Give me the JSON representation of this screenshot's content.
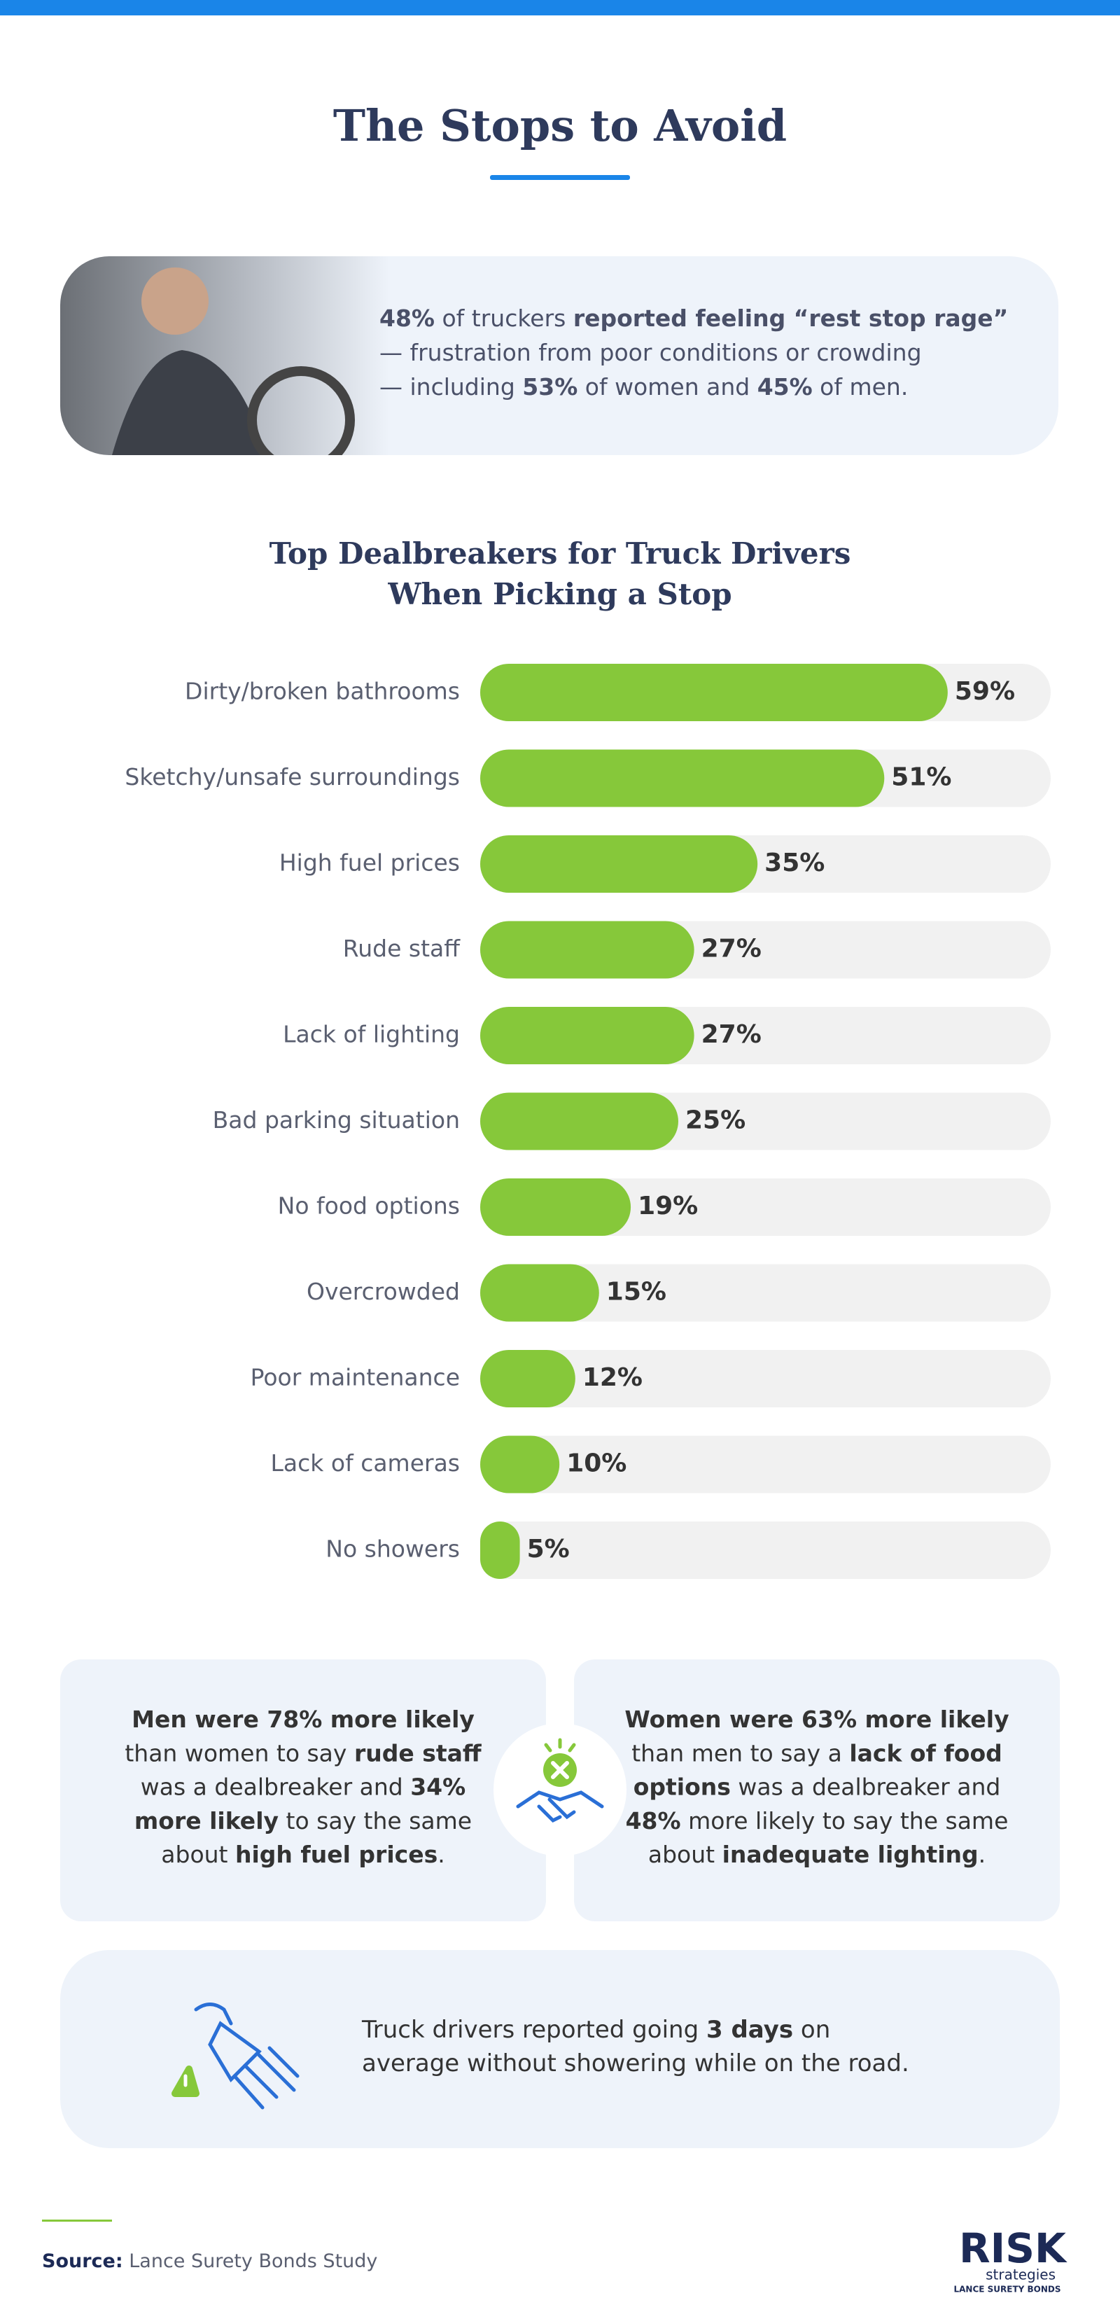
{
  "title": "The Stops to Avoid",
  "callout": {
    "lines": [
      [
        {
          "text": "48%",
          "bold": true
        },
        {
          "text": " of truckers ",
          "bold": false
        },
        {
          "text": "reported feeling “rest stop rage”",
          "bold": true
        }
      ],
      [
        {
          "text": "— frustration from poor conditions or crowding",
          "bold": false
        }
      ],
      [
        {
          "text": "— including ",
          "bold": false
        },
        {
          "text": "53%",
          "bold": true
        },
        {
          "text": " of women and ",
          "bold": false
        },
        {
          "text": "45%",
          "bold": true
        },
        {
          "text": " of men.",
          "bold": false
        }
      ]
    ]
  },
  "chart_data": {
    "type": "bar",
    "orientation": "horizontal",
    "title": [
      "Top Dealbreakers for Truck Drivers",
      "When Picking a Stop"
    ],
    "categories": [
      "Dirty/broken bathrooms",
      "Sketchy/unsafe surroundings",
      "High fuel prices",
      "Rude staff",
      "Lack of lighting",
      "Bad parking situation",
      "No food options",
      "Overcrowded",
      "Poor maintenance",
      "Lack of cameras",
      "No showers"
    ],
    "values": [
      59,
      51,
      35,
      27,
      27,
      25,
      19,
      15,
      12,
      10,
      5
    ],
    "value_labels": [
      "59%",
      "51%",
      "35%",
      "27%",
      "27%",
      "25%",
      "19%",
      "15%",
      "12%",
      "10%",
      "5%"
    ],
    "color": "#86c83a",
    "track_color": "#f1f1f1",
    "xlim": [
      0,
      72
    ]
  },
  "comparison": {
    "men": [
      [
        {
          "text": "Men were 78% more likely",
          "bold": true
        }
      ],
      [
        {
          "text": "than women to say ",
          "bold": false
        },
        {
          "text": "rude staff",
          "bold": true
        }
      ],
      [
        {
          "text": "was a dealbreaker and ",
          "bold": false
        },
        {
          "text": "34%",
          "bold": true
        }
      ],
      [
        {
          "text": "more likely",
          "bold": true
        },
        {
          "text": " to say the same",
          "bold": false
        }
      ],
      [
        {
          "text": "about ",
          "bold": false
        },
        {
          "text": "high fuel prices",
          "bold": true
        },
        {
          "text": ".",
          "bold": false
        }
      ]
    ],
    "women": [
      [
        {
          "text": "Women were 63% more likely",
          "bold": true
        }
      ],
      [
        {
          "text": "than men to say a ",
          "bold": false
        },
        {
          "text": "lack of food",
          "bold": true
        }
      ],
      [
        {
          "text": "options",
          "bold": true
        },
        {
          "text": " was a dealbreaker and",
          "bold": false
        }
      ],
      [
        {
          "text": "48%",
          "bold": true
        },
        {
          "text": " more likely to say the same",
          "bold": false
        }
      ],
      [
        {
          "text": "about ",
          "bold": false
        },
        {
          "text": "inadequate lighting",
          "bold": true
        },
        {
          "text": ".",
          "bold": false
        }
      ]
    ]
  },
  "shower": {
    "lines": [
      [
        {
          "text": "Truck drivers reported going ",
          "bold": false
        },
        {
          "text": "3 days",
          "bold": true
        },
        {
          "text": " on",
          "bold": false
        }
      ],
      [
        {
          "text": "average without showering while on the road.",
          "bold": false
        }
      ]
    ]
  },
  "source": [
    {
      "text": "Source:",
      "bold": true
    },
    {
      "text": " Lance Surety Bonds Study",
      "bold": false
    }
  ],
  "logo": {
    "name": "RISK",
    "sub": "strategies",
    "tagline": "LANCE SURETY BONDS"
  }
}
